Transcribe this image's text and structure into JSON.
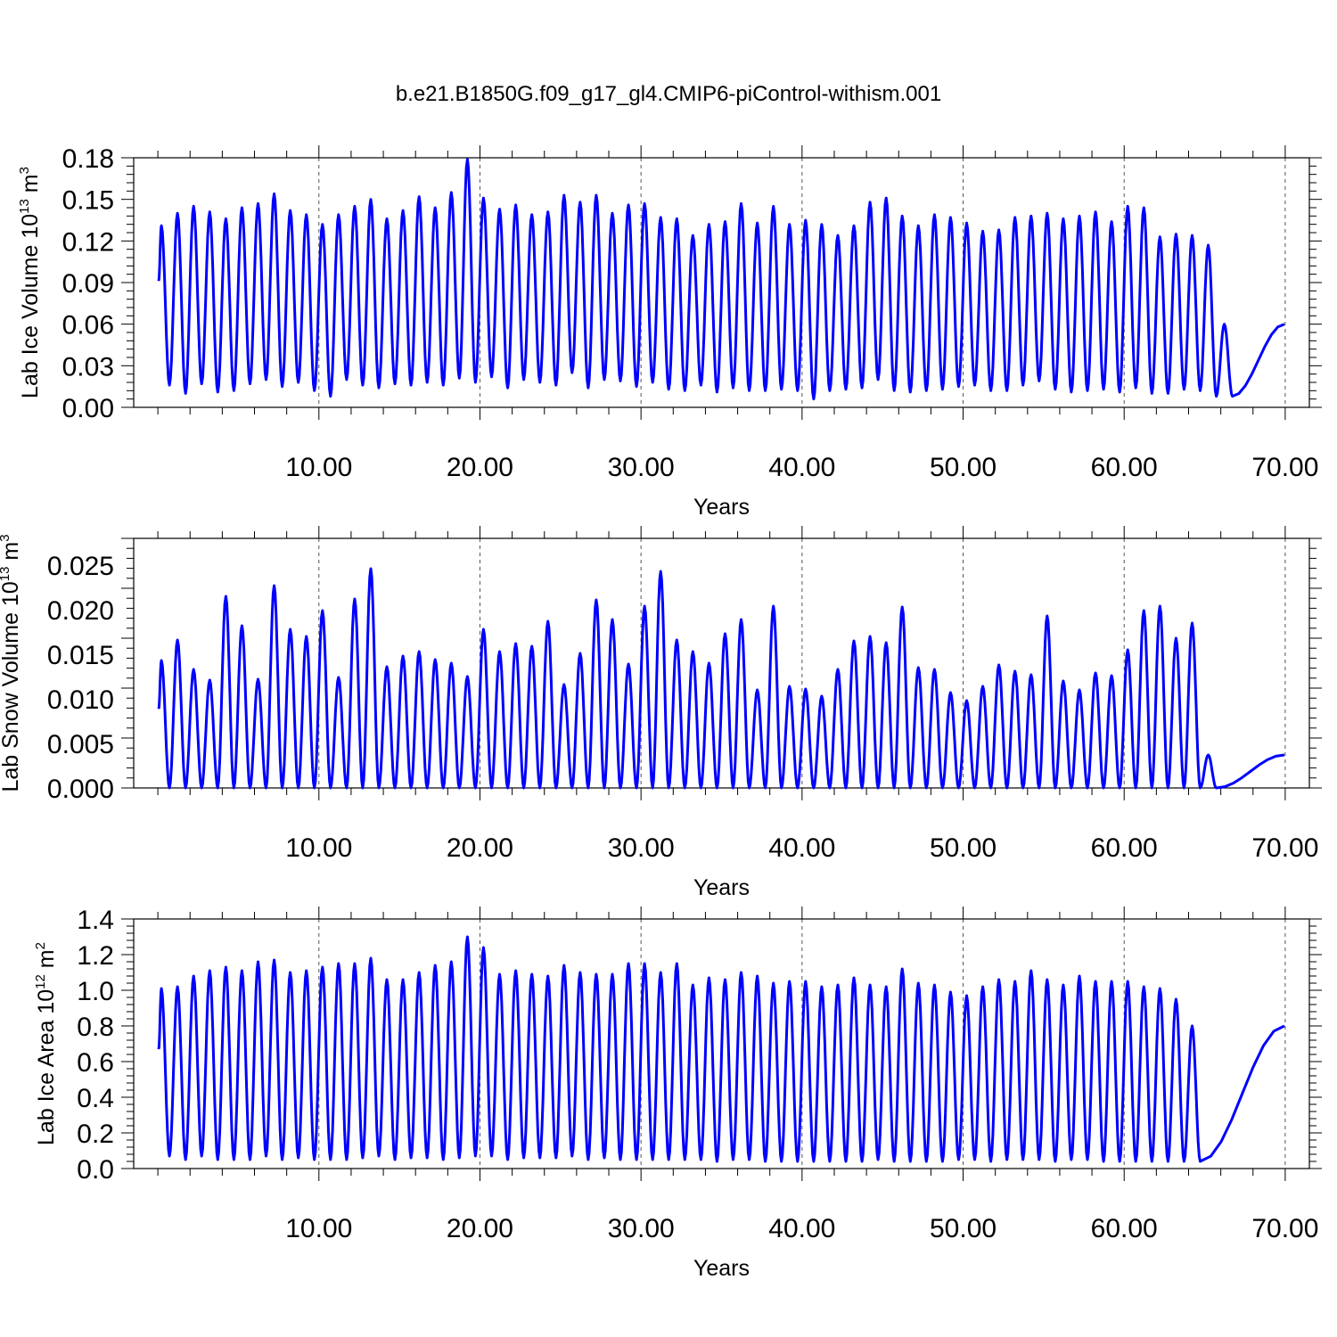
{
  "title": "b.e21.B1850G.f09_g17_gl4.CMIP6-piControl-withism.001",
  "colors": {
    "series": "#0000ff",
    "axis": "#000000",
    "grid": "#555555"
  },
  "chart_data": [
    {
      "type": "line",
      "xlabel": "Years",
      "ylabel": {
        "main": "Lab Ice Volume 10",
        "sup": "13",
        "unit": " m",
        "unit_sup": "3"
      },
      "xlim": [
        -1.5,
        71.5
      ],
      "ylim": [
        0.0,
        0.18
      ],
      "yticks": [
        "0.00",
        "0.03",
        "0.06",
        "0.09",
        "0.12",
        "0.15",
        "0.18"
      ],
      "xticks": [
        "10.00",
        "20.00",
        "30.00",
        "40.00",
        "50.00",
        "60.00",
        "70.00"
      ],
      "grid": "vertical-dashed",
      "series": [
        {
          "annual_max": [
            0.131,
            0.14,
            0.145,
            0.141,
            0.136,
            0.144,
            0.147,
            0.154,
            0.142,
            0.139,
            0.132,
            0.139,
            0.145,
            0.15,
            0.136,
            0.142,
            0.152,
            0.144,
            0.155,
            0.179,
            0.151,
            0.143,
            0.146,
            0.139,
            0.141,
            0.153,
            0.148,
            0.153,
            0.14,
            0.146,
            0.147,
            0.137,
            0.136,
            0.124,
            0.132,
            0.134,
            0.147,
            0.133,
            0.145,
            0.132,
            0.135,
            0.132,
            0.124,
            0.131,
            0.148,
            0.151,
            0.138,
            0.131,
            0.139,
            0.137,
            0.133,
            0.127,
            0.128,
            0.137,
            0.138,
            0.14,
            0.136,
            0.138,
            0.141,
            0.134,
            0.145,
            0.144,
            0.123,
            0.125,
            0.124,
            0.117,
            0.06
          ],
          "annual_min": [
            0.016,
            0.01,
            0.017,
            0.011,
            0.012,
            0.017,
            0.02,
            0.015,
            0.018,
            0.012,
            0.008,
            0.02,
            0.016,
            0.014,
            0.017,
            0.016,
            0.018,
            0.016,
            0.021,
            0.018,
            0.022,
            0.014,
            0.02,
            0.018,
            0.016,
            0.025,
            0.014,
            0.02,
            0.019,
            0.015,
            0.018,
            0.013,
            0.012,
            0.016,
            0.011,
            0.014,
            0.012,
            0.012,
            0.013,
            0.012,
            0.006,
            0.012,
            0.013,
            0.014,
            0.02,
            0.012,
            0.011,
            0.012,
            0.013,
            0.015,
            0.016,
            0.012,
            0.012,
            0.016,
            0.019,
            0.013,
            0.011,
            0.012,
            0.013,
            0.011,
            0.014,
            0.01,
            0.01,
            0.013,
            0.012,
            0.008
          ]
        }
      ]
    },
    {
      "type": "line",
      "xlabel": "Years",
      "ylabel": {
        "main": "Lab Snow Volume 10",
        "sup": "13",
        "unit": " m",
        "unit_sup": "3"
      },
      "xlim": [
        -1.5,
        71.5
      ],
      "ylim": [
        0.0,
        0.028
      ],
      "yticks": [
        "0.000",
        "0.005",
        "0.010",
        "0.015",
        "0.020",
        "0.025"
      ],
      "xticks": [
        "10.00",
        "20.00",
        "30.00",
        "40.00",
        "50.00",
        "60.00",
        "70.00"
      ],
      "grid": "vertical-dashed",
      "series": [
        {
          "annual_max": [
            0.0143,
            0.0166,
            0.0133,
            0.0121,
            0.0215,
            0.0182,
            0.0122,
            0.0227,
            0.0178,
            0.017,
            0.0199,
            0.0124,
            0.0212,
            0.0246,
            0.0136,
            0.0148,
            0.0153,
            0.0144,
            0.014,
            0.0125,
            0.0178,
            0.0153,
            0.0162,
            0.0159,
            0.0187,
            0.0116,
            0.0151,
            0.0211,
            0.0189,
            0.0139,
            0.0204,
            0.0243,
            0.0166,
            0.0153,
            0.014,
            0.0173,
            0.0189,
            0.011,
            0.0204,
            0.0114,
            0.0111,
            0.0103,
            0.0133,
            0.0165,
            0.017,
            0.0163,
            0.0203,
            0.0135,
            0.0133,
            0.0107,
            0.0098,
            0.0114,
            0.0138,
            0.0131,
            0.0127,
            0.0193,
            0.012,
            0.011,
            0.0129,
            0.0126,
            0.0155,
            0.0199,
            0.0204,
            0.0168,
            0.0185,
            0.0037
          ]
        }
      ]
    },
    {
      "type": "line",
      "xlabel": "Years",
      "ylabel": {
        "main": "Lab Ice Area 10",
        "sup": "12",
        "unit": " m",
        "unit_sup": "2"
      },
      "xlim": [
        -1.5,
        71.5
      ],
      "ylim": [
        0.0,
        1.4
      ],
      "yticks": [
        "0.0",
        "0.2",
        "0.4",
        "0.6",
        "0.8",
        "1.0",
        "1.2",
        "1.4"
      ],
      "xticks": [
        "10.00",
        "20.00",
        "30.00",
        "40.00",
        "50.00",
        "60.00",
        "70.00"
      ],
      "grid": "vertical-dashed",
      "series": [
        {
          "annual_max": [
            1.01,
            1.02,
            1.08,
            1.11,
            1.13,
            1.11,
            1.16,
            1.17,
            1.1,
            1.11,
            1.13,
            1.15,
            1.15,
            1.18,
            1.06,
            1.06,
            1.1,
            1.14,
            1.16,
            1.3,
            1.24,
            1.09,
            1.11,
            1.09,
            1.08,
            1.14,
            1.1,
            1.09,
            1.09,
            1.15,
            1.15,
            1.1,
            1.15,
            1.03,
            1.07,
            1.06,
            1.1,
            1.08,
            1.04,
            1.05,
            1.05,
            1.02,
            1.03,
            1.07,
            1.03,
            1.02,
            1.12,
            1.04,
            1.03,
            0.99,
            0.97,
            1.02,
            1.06,
            1.05,
            1.11,
            1.06,
            1.03,
            1.08,
            1.05,
            1.05,
            1.05,
            1.02,
            1.01,
            0.95,
            0.8
          ],
          "annual_min": [
            0.07,
            0.05,
            0.07,
            0.05,
            0.05,
            0.05,
            0.07,
            0.05,
            0.06,
            0.05,
            0.05,
            0.05,
            0.06,
            0.07,
            0.05,
            0.06,
            0.06,
            0.05,
            0.06,
            0.07,
            0.07,
            0.05,
            0.06,
            0.06,
            0.06,
            0.07,
            0.05,
            0.06,
            0.05,
            0.05,
            0.05,
            0.05,
            0.05,
            0.05,
            0.04,
            0.05,
            0.05,
            0.04,
            0.04,
            0.04,
            0.04,
            0.04,
            0.04,
            0.04,
            0.05,
            0.04,
            0.04,
            0.04,
            0.04,
            0.05,
            0.05,
            0.04,
            0.05,
            0.05,
            0.05,
            0.04,
            0.05,
            0.05,
            0.04,
            0.04,
            0.04,
            0.04,
            0.04,
            0.04
          ]
        }
      ]
    }
  ]
}
